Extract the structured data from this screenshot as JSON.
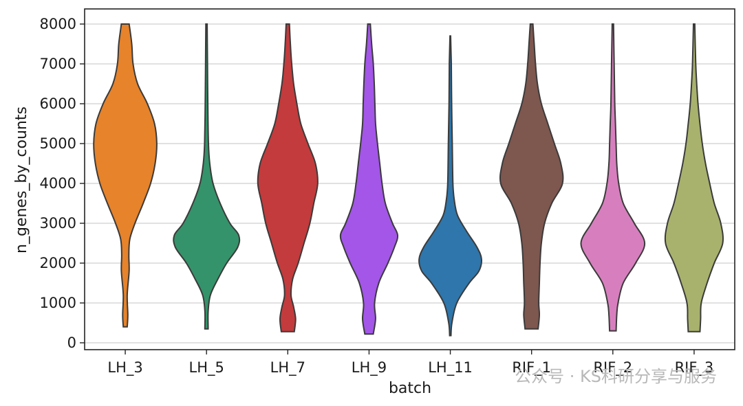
{
  "chart_data": {
    "type": "violin",
    "title": "",
    "xlabel": "batch",
    "ylabel": "n_genes_by_counts",
    "ylim": [
      -200,
      8400
    ],
    "yticks": [
      0,
      1000,
      2000,
      3000,
      4000,
      5000,
      6000,
      7000,
      8000
    ],
    "grid": "horizontal",
    "categories": [
      "LH_3",
      "LH_5",
      "LH_7",
      "LH_9",
      "LH_11",
      "RIF_1",
      "RIF_2",
      "RIF_3"
    ],
    "colors": [
      "#E6832B",
      "#34936A",
      "#C33B3C",
      "#A356E8",
      "#2E76AB",
      "#7E574F",
      "#D77FBE",
      "#A9B26D"
    ],
    "series": [
      {
        "name": "LH_3",
        "min": 400,
        "max": 8000,
        "profile": [
          [
            400,
            0.06
          ],
          [
            700,
            0.08
          ],
          [
            1200,
            0.06
          ],
          [
            1800,
            0.12
          ],
          [
            2200,
            0.11
          ],
          [
            2600,
            0.14
          ],
          [
            3000,
            0.3
          ],
          [
            3500,
            0.55
          ],
          [
            4000,
            0.78
          ],
          [
            4500,
            0.92
          ],
          [
            5000,
            0.97
          ],
          [
            5500,
            0.9
          ],
          [
            6000,
            0.68
          ],
          [
            6500,
            0.38
          ],
          [
            7000,
            0.24
          ],
          [
            7500,
            0.2
          ],
          [
            8000,
            0.12
          ]
        ]
      },
      {
        "name": "LH_5",
        "min": 350,
        "max": 8000,
        "profile": [
          [
            350,
            0.05
          ],
          [
            800,
            0.05
          ],
          [
            1200,
            0.12
          ],
          [
            1600,
            0.35
          ],
          [
            2000,
            0.62
          ],
          [
            2400,
            0.96
          ],
          [
            2700,
            0.99
          ],
          [
            3000,
            0.72
          ],
          [
            3500,
            0.42
          ],
          [
            4000,
            0.2
          ],
          [
            4500,
            0.1
          ],
          [
            5000,
            0.06
          ],
          [
            6000,
            0.04
          ],
          [
            7000,
            0.03
          ],
          [
            8000,
            0.02
          ]
        ]
      },
      {
        "name": "LH_7",
        "min": 280,
        "max": 8000,
        "profile": [
          [
            280,
            0.2
          ],
          [
            600,
            0.24
          ],
          [
            900,
            0.18
          ],
          [
            1200,
            0.1
          ],
          [
            1600,
            0.15
          ],
          [
            2000,
            0.32
          ],
          [
            2500,
            0.5
          ],
          [
            3000,
            0.68
          ],
          [
            3500,
            0.8
          ],
          [
            4000,
            0.92
          ],
          [
            4500,
            0.85
          ],
          [
            5000,
            0.62
          ],
          [
            5500,
            0.4
          ],
          [
            6000,
            0.28
          ],
          [
            6500,
            0.18
          ],
          [
            7000,
            0.12
          ],
          [
            7500,
            0.08
          ],
          [
            8000,
            0.05
          ]
        ]
      },
      {
        "name": "LH_9",
        "min": 220,
        "max": 8000,
        "profile": [
          [
            220,
            0.13
          ],
          [
            600,
            0.2
          ],
          [
            1000,
            0.17
          ],
          [
            1500,
            0.3
          ],
          [
            2000,
            0.58
          ],
          [
            2400,
            0.78
          ],
          [
            2700,
            0.88
          ],
          [
            3000,
            0.72
          ],
          [
            3500,
            0.5
          ],
          [
            4000,
            0.4
          ],
          [
            4500,
            0.33
          ],
          [
            5000,
            0.26
          ],
          [
            5500,
            0.2
          ],
          [
            6000,
            0.18
          ],
          [
            6500,
            0.16
          ],
          [
            7000,
            0.13
          ],
          [
            7500,
            0.08
          ],
          [
            8000,
            0.04
          ]
        ]
      },
      {
        "name": "LH_11",
        "min": 180,
        "max": 7700,
        "profile": [
          [
            180,
            0.02
          ],
          [
            500,
            0.05
          ],
          [
            1000,
            0.2
          ],
          [
            1500,
            0.58
          ],
          [
            1800,
            0.88
          ],
          [
            2100,
            0.96
          ],
          [
            2400,
            0.82
          ],
          [
            2800,
            0.5
          ],
          [
            3200,
            0.22
          ],
          [
            3600,
            0.12
          ],
          [
            4000,
            0.08
          ],
          [
            5000,
            0.06
          ],
          [
            6000,
            0.04
          ],
          [
            7000,
            0.03
          ],
          [
            7700,
            0.01
          ]
        ]
      },
      {
        "name": "RIF_1",
        "min": 350,
        "max": 8000,
        "profile": [
          [
            350,
            0.2
          ],
          [
            700,
            0.24
          ],
          [
            1000,
            0.22
          ],
          [
            1500,
            0.24
          ],
          [
            2000,
            0.26
          ],
          [
            2500,
            0.3
          ],
          [
            3000,
            0.4
          ],
          [
            3500,
            0.62
          ],
          [
            4000,
            0.95
          ],
          [
            4500,
            0.9
          ],
          [
            5000,
            0.7
          ],
          [
            5500,
            0.5
          ],
          [
            6000,
            0.3
          ],
          [
            6500,
            0.18
          ],
          [
            7000,
            0.12
          ],
          [
            7500,
            0.08
          ],
          [
            8000,
            0.04
          ]
        ]
      },
      {
        "name": "RIF_2",
        "min": 300,
        "max": 8000,
        "profile": [
          [
            300,
            0.1
          ],
          [
            700,
            0.12
          ],
          [
            1000,
            0.16
          ],
          [
            1500,
            0.32
          ],
          [
            2000,
            0.7
          ],
          [
            2500,
            0.98
          ],
          [
            3000,
            0.66
          ],
          [
            3500,
            0.32
          ],
          [
            4000,
            0.18
          ],
          [
            4500,
            0.12
          ],
          [
            5000,
            0.1
          ],
          [
            5500,
            0.08
          ],
          [
            6000,
            0.06
          ],
          [
            7000,
            0.04
          ],
          [
            8000,
            0.02
          ]
        ]
      },
      {
        "name": "RIF_3",
        "min": 280,
        "max": 8000,
        "profile": [
          [
            280,
            0.18
          ],
          [
            600,
            0.2
          ],
          [
            1000,
            0.22
          ],
          [
            1500,
            0.4
          ],
          [
            2000,
            0.62
          ],
          [
            2500,
            0.88
          ],
          [
            3000,
            0.82
          ],
          [
            3500,
            0.62
          ],
          [
            4000,
            0.48
          ],
          [
            4500,
            0.35
          ],
          [
            5000,
            0.25
          ],
          [
            5500,
            0.18
          ],
          [
            6000,
            0.12
          ],
          [
            6500,
            0.08
          ],
          [
            7000,
            0.05
          ],
          [
            8000,
            0.02
          ]
        ]
      }
    ]
  },
  "watermark": "公众号 · KS科研分享与服务"
}
